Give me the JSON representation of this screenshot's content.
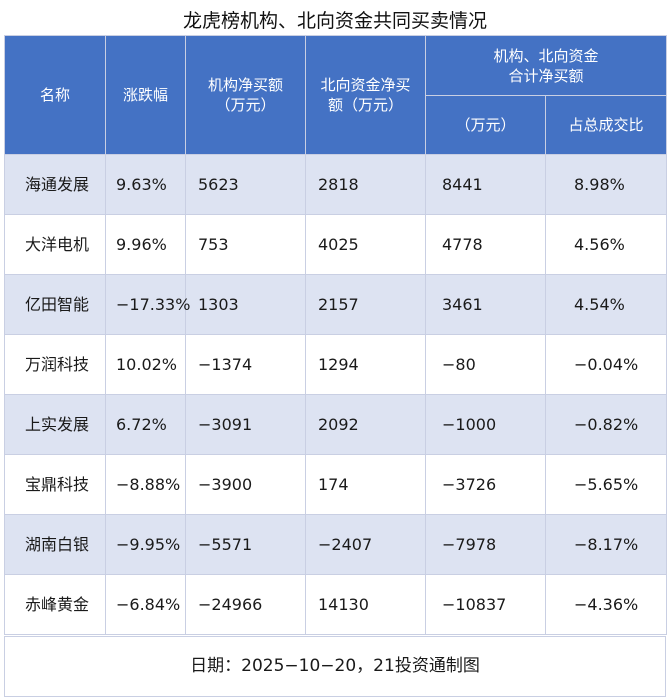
{
  "title": "龙虎榜机构、北向资金共同买卖情况",
  "headers": {
    "name": "名称",
    "change": "涨跌幅",
    "inst_net_line1": "机构净买额",
    "inst_net_line2": "（万元）",
    "north_net_line1": "北向资金净买",
    "north_net_line2": "额（万元）",
    "combined_line1": "机构、北向资金",
    "combined_line2": "合计净买额",
    "combined_sub_amount": "（万元）",
    "combined_sub_ratio": "占总成交比"
  },
  "rows": [
    {
      "name": "海通发展",
      "change": "9.63%",
      "inst_net": "5623",
      "north_net": "2818",
      "combined": "8441",
      "ratio": "8.98%"
    },
    {
      "name": "大洋电机",
      "change": "9.96%",
      "inst_net": "753",
      "north_net": "4025",
      "combined": "4778",
      "ratio": "4.56%"
    },
    {
      "name": "亿田智能",
      "change": "−17.33%",
      "inst_net": "1303",
      "north_net": "2157",
      "combined": "3461",
      "ratio": "4.54%"
    },
    {
      "name": "万润科技",
      "change": "10.02%",
      "inst_net": "−1374",
      "north_net": "1294",
      "combined": "−80",
      "ratio": "−0.04%"
    },
    {
      "name": "上实发展",
      "change": "6.72%",
      "inst_net": "−3091",
      "north_net": "2092",
      "combined": "−1000",
      "ratio": "−0.82%"
    },
    {
      "name": "宝鼎科技",
      "change": "−8.88%",
      "inst_net": "−3900",
      "north_net": "174",
      "combined": "−3726",
      "ratio": "−5.65%"
    },
    {
      "name": "湖南白银",
      "change": "−9.95%",
      "inst_net": "−5571",
      "north_net": "−2407",
      "combined": "−7978",
      "ratio": "−8.17%"
    },
    {
      "name": "赤峰黄金",
      "change": "−6.84%",
      "inst_net": "−24966",
      "north_net": "14130",
      "combined": "−10837",
      "ratio": "−4.36%"
    }
  ],
  "footer": "日期：2025−10−20，21投资通制图"
}
